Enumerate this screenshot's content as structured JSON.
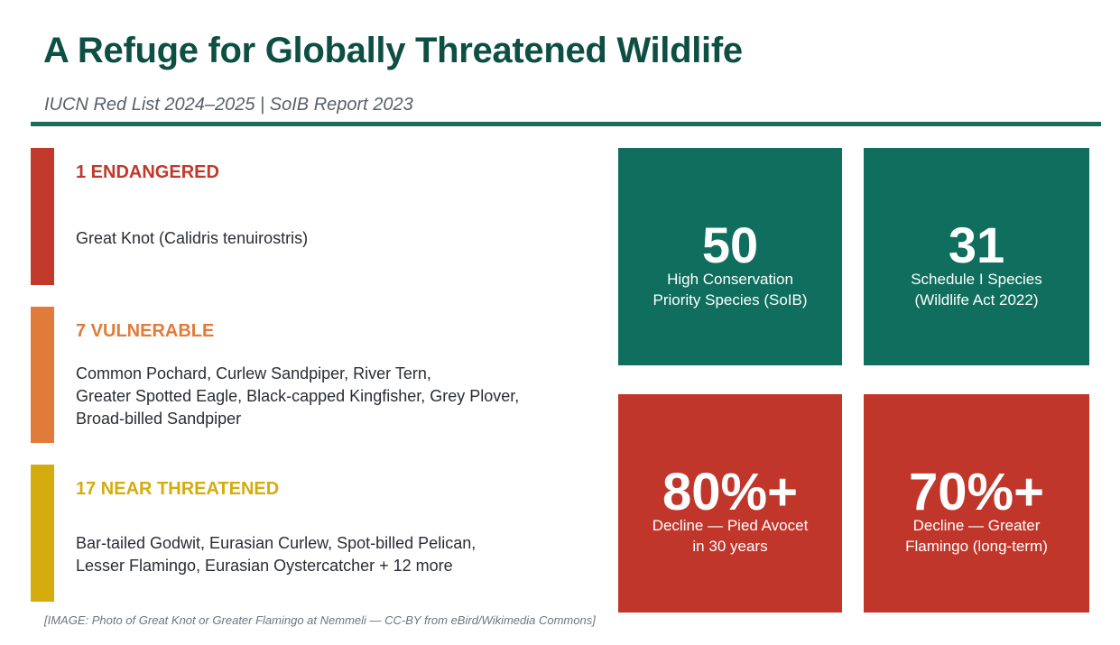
{
  "header": {
    "title": "A Refuge for Globally Threatened Wildlife",
    "subtitle": "IUCN Red List 2024–2025 | SoIB Report 2023"
  },
  "categories": [
    {
      "heading": "1 ENDANGERED",
      "color": "#c0392b",
      "species_lines": [
        "Great Knot (Calidris tenuirostris)"
      ]
    },
    {
      "heading": "7 VULNERABLE",
      "color": "#e07b39",
      "species_lines": [
        "Common Pochard, Curlew Sandpiper, River Tern,",
        "Greater Spotted Eagle, Black-capped Kingfisher, Grey Plover,",
        "Broad-billed Sandpiper"
      ]
    },
    {
      "heading": "17 NEAR THREATENED",
      "color": "#d4ac0d",
      "species_lines": [
        "Bar-tailed Godwit, Eurasian Curlew, Spot-billed Pelican,",
        "Lesser Flamingo, Eurasian Oystercatcher + 12 more"
      ]
    }
  ],
  "stats": [
    {
      "value": "50",
      "caption_lines": [
        "High Conservation",
        "Priority Species (SoIB)"
      ],
      "color": "#0f6e5e"
    },
    {
      "value": "31",
      "caption_lines": [
        "Schedule I Species",
        "(Wildlife Act 2022)"
      ],
      "color": "#0f6e5e"
    },
    {
      "value": "80%+",
      "caption_lines": [
        "Decline — Pied Avocet",
        "in 30 years"
      ],
      "color": "#c1362b"
    },
    {
      "value": "70%+",
      "caption_lines": [
        "Decline — Greater",
        "Flamingo (long-term)"
      ],
      "color": "#c1362b"
    }
  ],
  "image_note": "[IMAGE: Photo of Great Knot or Greater Flamingo at Nemmeli — CC-BY from eBird/Wikimedia Commons]"
}
